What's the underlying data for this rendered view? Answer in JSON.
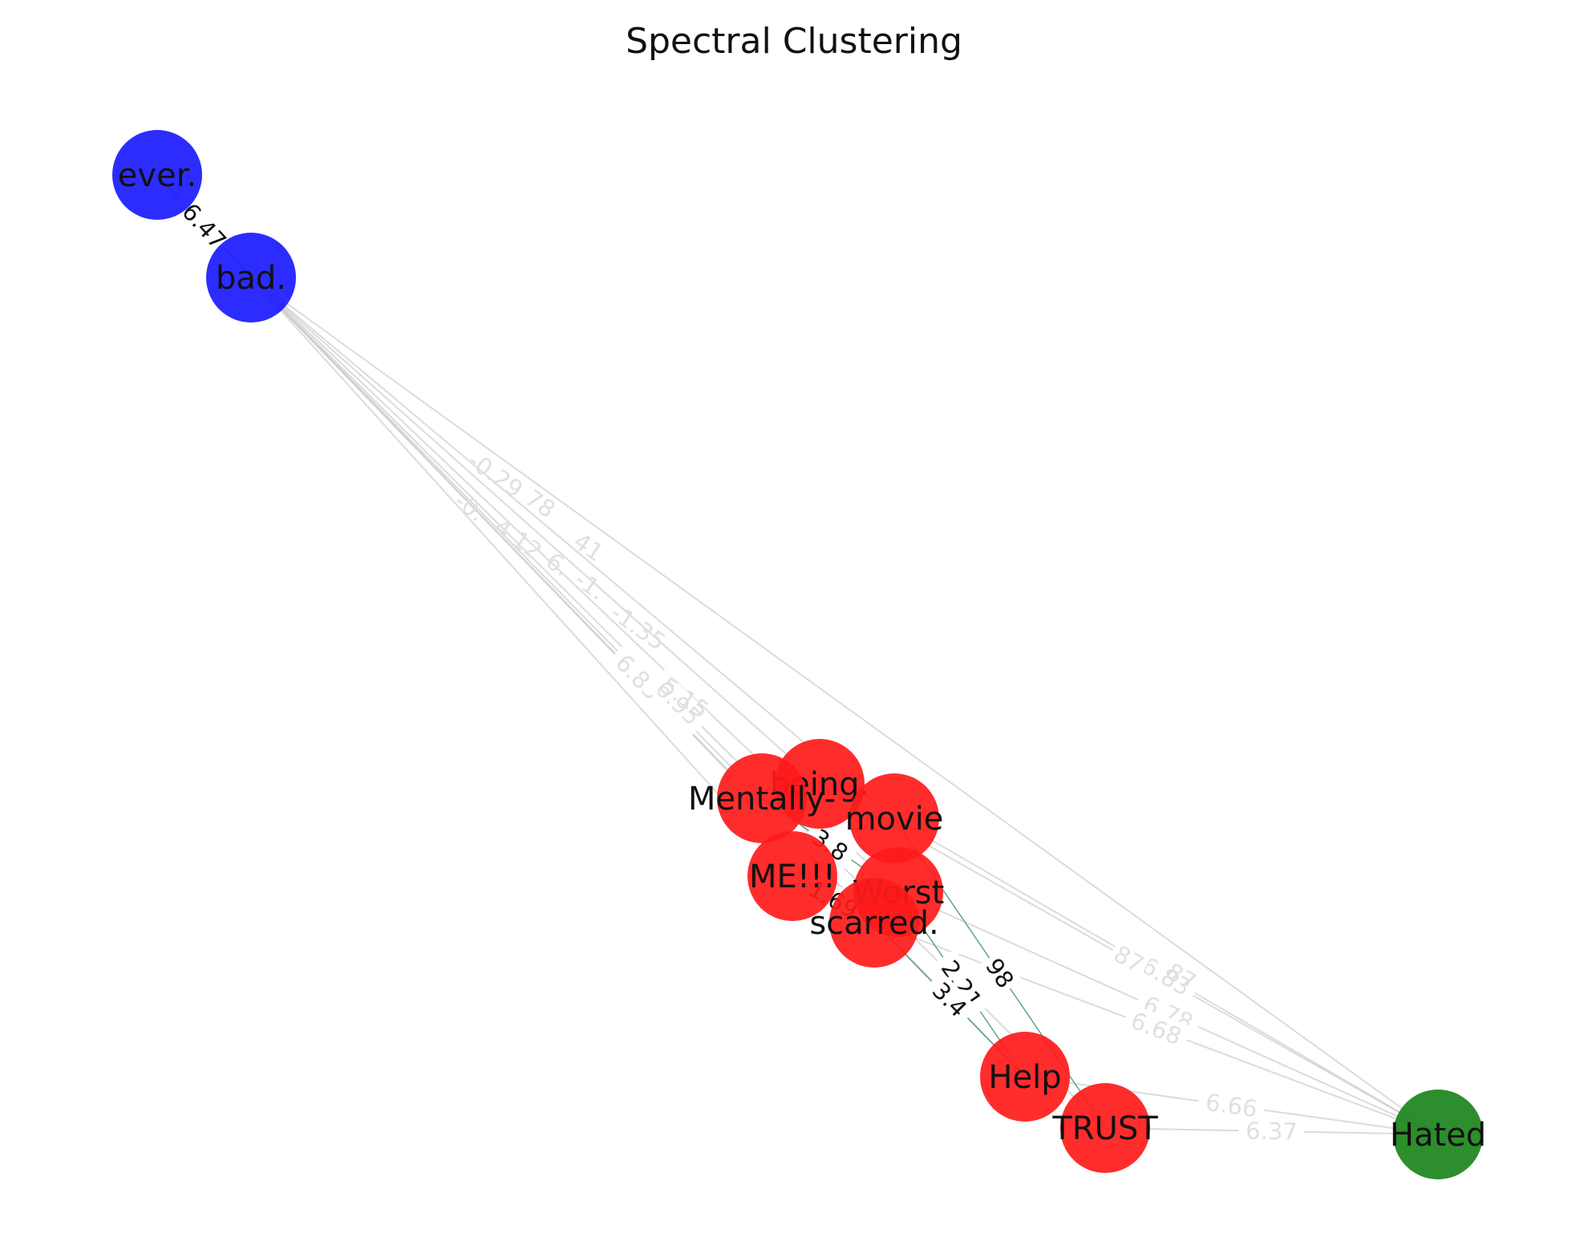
{
  "title": "Spectral Clustering",
  "colors": {
    "cluster_blue": "#1a1aff",
    "cluster_red": "#ff1a1a",
    "cluster_green": "#1a841a",
    "edge_gray": "#cccccc",
    "edge_green": "#2e8b57",
    "label_light": "#e0e0e0",
    "label_dark": "#111111"
  },
  "nodes": [
    {
      "id": "ever",
      "label": "ever.",
      "cluster": "blue"
    },
    {
      "id": "bad",
      "label": "bad.",
      "cluster": "blue"
    },
    {
      "id": "being",
      "label": "being.",
      "cluster": "red"
    },
    {
      "id": "mentally",
      "label": "Mentally-",
      "cluster": "red"
    },
    {
      "id": "movie",
      "label": "movie",
      "cluster": "red"
    },
    {
      "id": "me",
      "label": "ME!!!",
      "cluster": "red"
    },
    {
      "id": "worst",
      "label": "Worst",
      "cluster": "red"
    },
    {
      "id": "scarred",
      "label": "scarred.",
      "cluster": "red"
    },
    {
      "id": "help",
      "label": "Help",
      "cluster": "red"
    },
    {
      "id": "trust",
      "label": "TRUST",
      "cluster": "red"
    },
    {
      "id": "hated",
      "label": "Hated",
      "cluster": "green"
    }
  ],
  "edges": [
    {
      "source": "ever",
      "target": "bad",
      "weight_label": "6.47",
      "style": "green"
    },
    {
      "source": "bad",
      "target": "being",
      "weight_label": "",
      "style": "gray"
    },
    {
      "source": "bad",
      "target": "mentally",
      "weight_label": "",
      "style": "gray"
    },
    {
      "source": "bad",
      "target": "movie",
      "weight_label": "",
      "style": "gray"
    },
    {
      "source": "bad",
      "target": "me",
      "weight_label": "",
      "style": "gray"
    },
    {
      "source": "bad",
      "target": "worst",
      "weight_label": "",
      "style": "gray"
    },
    {
      "source": "bad",
      "target": "scarred",
      "weight_label": "",
      "style": "gray"
    },
    {
      "source": "bad",
      "target": "help",
      "weight_label": "6.83",
      "style": "gray"
    },
    {
      "source": "bad",
      "target": "trust",
      "weight_label": "6.95",
      "style": "gray"
    },
    {
      "source": "bad",
      "target": "hated",
      "weight_label": "",
      "style": "gray"
    },
    {
      "source": "movie",
      "target": "hated",
      "weight_label": "6.83",
      "style": "gray"
    },
    {
      "source": "worst",
      "target": "hated",
      "weight_label": "6.78",
      "style": "gray"
    },
    {
      "source": "scarred",
      "target": "hated",
      "weight_label": "6.68",
      "style": "gray"
    },
    {
      "source": "help",
      "target": "hated",
      "weight_label": "6.66",
      "style": "gray"
    },
    {
      "source": "trust",
      "target": "hated",
      "weight_label": "6.37",
      "style": "gray"
    },
    {
      "source": "being",
      "target": "hated",
      "weight_label": "87",
      "style": "gray"
    },
    {
      "source": "worst",
      "target": "help",
      "weight_label": "2.21",
      "style": "green"
    },
    {
      "source": "scarred",
      "target": "help",
      "weight_label": "3.4",
      "style": "green"
    },
    {
      "source": "movie",
      "target": "trust",
      "weight_label": "98",
      "style": "green"
    },
    {
      "source": "mentally",
      "target": "worst",
      "weight_label": "3.8",
      "style": "green"
    },
    {
      "source": "me",
      "target": "scarred",
      "weight_label": "1.69",
      "style": "green"
    }
  ],
  "visible_edge_labels_light": [
    "-0.29",
    "78",
    "41",
    "-0.",
    "4.12",
    "6.",
    "-1.",
    "-1.35",
    "5.15",
    "6.83",
    "6.95",
    "6.78",
    "87",
    "6.68",
    "6.66",
    "6.37"
  ],
  "visible_edge_labels_dark": [
    "6.47",
    "3.8",
    "1.69",
    "98",
    "3.4",
    "2.21"
  ]
}
